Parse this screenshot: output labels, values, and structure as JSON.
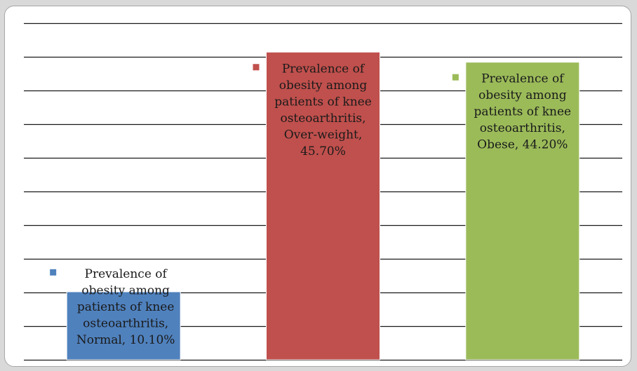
{
  "chart_data": {
    "type": "bar",
    "categories": [
      "Normal",
      "Over-weight",
      "Obese"
    ],
    "series": [
      {
        "name": "Prevalence of obesity among patients of knee osteoarthritis",
        "values": [
          10.1,
          45.7,
          44.2
        ]
      }
    ],
    "colors": [
      "#4f81bd",
      "#c0504d",
      "#9bbb59"
    ],
    "ylim": [
      0,
      50
    ],
    "grid": true,
    "data_labels": [
      [
        "Prevalence of",
        "obesity among",
        "patients of knee",
        "osteoarthritis,",
        "Normal, 10.10%"
      ],
      [
        "Prevalence of",
        "obesity among",
        "patients of knee",
        "osteoarthritis,",
        "Over-weight,",
        "45.70%"
      ],
      [
        "Prevalence of",
        "obesity among",
        "patients of knee",
        "osteoarthritis,",
        "Obese, 44.20%"
      ]
    ]
  }
}
